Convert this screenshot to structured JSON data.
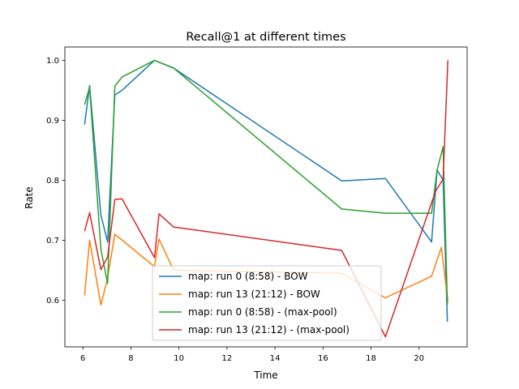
{
  "chart_data": {
    "type": "line",
    "title": "Recall@1 at different times",
    "xlabel": "Time",
    "ylabel": "Rate",
    "xlim": [
      5.25,
      22.0
    ],
    "ylim": [
      0.5222,
      1.0222
    ],
    "xticks": [
      6,
      8,
      10,
      12,
      14,
      16,
      18,
      20
    ],
    "xtick_labels": [
      "6",
      "8",
      "10",
      "12",
      "14",
      "16",
      "18",
      "20"
    ],
    "yticks": [
      0.6,
      0.7,
      0.8,
      0.9,
      1.0
    ],
    "ytick_labels": [
      "0.6",
      "0.7",
      "0.8",
      "0.9",
      "1.0"
    ],
    "grid": false,
    "legend_position": "lower-center",
    "series": [
      {
        "name": "map: run 0 (8:58) - BOW",
        "color": "#1f77b4",
        "x": [
          6.07,
          6.28,
          6.75,
          7.03,
          7.33,
          7.63,
          8.98,
          9.78,
          16.78,
          18.6,
          20.52,
          20.75,
          21.0,
          21.18
        ],
        "y": [
          0.893,
          0.958,
          0.742,
          0.697,
          0.942,
          0.95,
          1.0,
          0.987,
          0.799,
          0.803,
          0.697,
          0.817,
          0.8,
          0.564
        ]
      },
      {
        "name": "map: run 13 (21:12) - BOW",
        "color": "#ff7f0e",
        "x": [
          6.07,
          6.28,
          6.75,
          7.03,
          7.33,
          8.98,
          9.17,
          9.78,
          16.78,
          18.6,
          20.52,
          20.93,
          21.2
        ],
        "y": [
          0.608,
          0.7,
          0.592,
          0.637,
          0.71,
          0.656,
          0.702,
          0.65,
          0.645,
          0.604,
          0.64,
          0.688,
          0.598
        ]
      },
      {
        "name": "map: run 0 (8:58) - (max-pool)",
        "color": "#2ca02c",
        "x": [
          6.07,
          6.28,
          6.75,
          7.03,
          7.33,
          7.63,
          8.98,
          9.78,
          16.78,
          18.6,
          20.52,
          20.75,
          21.0,
          21.18
        ],
        "y": [
          0.926,
          0.955,
          0.685,
          0.628,
          0.957,
          0.972,
          1.0,
          0.987,
          0.752,
          0.745,
          0.745,
          0.817,
          0.856,
          0.592
        ]
      },
      {
        "name": "map: run 13 (21:12) - (max-pool)",
        "color": "#d62728",
        "x": [
          6.07,
          6.28,
          6.75,
          7.03,
          7.33,
          7.63,
          8.98,
          9.17,
          9.78,
          16.78,
          18.6,
          20.68,
          21.0,
          21.2
        ],
        "y": [
          0.715,
          0.746,
          0.651,
          0.672,
          0.768,
          0.769,
          0.671,
          0.744,
          0.722,
          0.683,
          0.539,
          0.781,
          0.802,
          1.0
        ]
      }
    ]
  }
}
